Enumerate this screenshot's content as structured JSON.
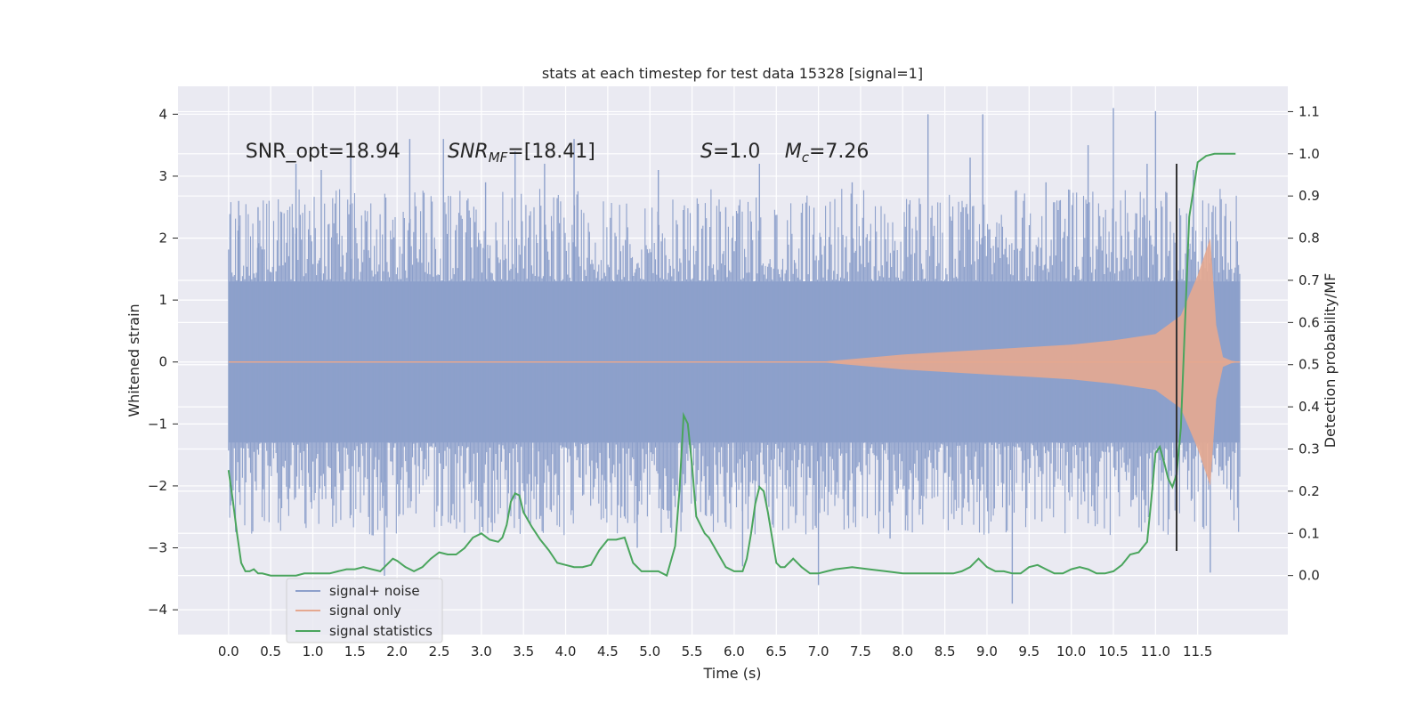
{
  "chart_data": {
    "type": "line",
    "title": "stats at each timestep for test data 15328 [signal=1]",
    "xlabel": "Time (s)",
    "ylabel": "Whitened strain",
    "y2label": "Detection probability/MF",
    "xlim": [
      -0.6,
      12.57
    ],
    "ylim": [
      -4.4,
      4.45
    ],
    "y2lim": [
      -0.14,
      1.16
    ],
    "x_ticks": [
      0.0,
      0.5,
      1.0,
      1.5,
      2.0,
      2.5,
      3.0,
      3.5,
      4.0,
      4.5,
      5.0,
      5.5,
      6.0,
      6.5,
      7.0,
      7.5,
      8.0,
      8.5,
      9.0,
      9.5,
      10.0,
      10.5,
      11.0,
      11.5
    ],
    "y_ticks": [
      -4,
      -3,
      -2,
      -1,
      0,
      1,
      2,
      3,
      4
    ],
    "y2_ticks": [
      0.0,
      0.1,
      0.2,
      0.3,
      0.4,
      0.5,
      0.6,
      0.7,
      0.8,
      0.9,
      1.0,
      1.1
    ],
    "grid": true,
    "legend_position": "lower-left",
    "annotations": [
      {
        "text": "SNR_opt=18.94",
        "x": 0.2,
        "y": 3.3
      },
      {
        "text": "SNR",
        "sub": "MF",
        "suffix": "=[18.41]",
        "italic": true,
        "x": 2.6,
        "y": 3.3
      },
      {
        "text": "S",
        "suffix": "=1.0",
        "italic": true,
        "x": 5.6,
        "y": 3.3
      },
      {
        "text": "M",
        "sub": "c",
        "suffix": "=7.26",
        "italic": true,
        "x": 6.6,
        "y": 3.3
      }
    ],
    "vline": {
      "x": 11.25,
      "y": [
        -3.05,
        3.2
      ],
      "color": "#333333"
    },
    "series": [
      {
        "name": "signal+ noise",
        "color": "#8da0cb",
        "axis": "left",
        "x_range": [
          0.0,
          12.0
        ],
        "noise_core_amplitude": 1.3,
        "peak_spikes": [
          [
            0.12,
            2.6
          ],
          [
            0.35,
            2.5
          ],
          [
            0.8,
            3.2
          ],
          [
            1.1,
            3.1
          ],
          [
            1.45,
            3.5
          ],
          [
            1.85,
            -3.45
          ],
          [
            2.15,
            3.6
          ],
          [
            2.55,
            3.6
          ],
          [
            3.05,
            2.9
          ],
          [
            3.4,
            3.4
          ],
          [
            3.75,
            3.2
          ],
          [
            4.1,
            3.6
          ],
          [
            4.85,
            -3.0
          ],
          [
            5.1,
            3.1
          ],
          [
            5.9,
            2.5
          ],
          [
            6.1,
            -3.3
          ],
          [
            6.3,
            3.2
          ],
          [
            7.0,
            -3.6
          ],
          [
            7.4,
            2.9
          ],
          [
            7.85,
            -2.85
          ],
          [
            8.3,
            4.0
          ],
          [
            8.8,
            3.3
          ],
          [
            8.95,
            4.0
          ],
          [
            9.3,
            -3.9
          ],
          [
            9.7,
            2.9
          ],
          [
            10.2,
            3.5
          ],
          [
            10.5,
            4.1
          ],
          [
            10.9,
            3.2
          ],
          [
            11.0,
            4.05
          ],
          [
            11.45,
            3.1
          ],
          [
            11.65,
            -3.4
          ]
        ]
      },
      {
        "name": "signal only",
        "color": "#e5a890",
        "axis": "left",
        "envelope": {
          "x": [
            0.0,
            5.0,
            7.0,
            8.0,
            9.0,
            9.5,
            10.0,
            10.5,
            11.0,
            11.3,
            11.5,
            11.65,
            11.72,
            11.8,
            11.9,
            12.0
          ],
          "y": [
            0.0,
            0.0,
            0.0,
            0.12,
            0.2,
            0.24,
            0.28,
            0.35,
            0.45,
            0.75,
            1.4,
            2.0,
            0.6,
            0.08,
            0.02,
            0.0
          ]
        }
      },
      {
        "name": "signal statistics",
        "color": "#4aa55d",
        "axis": "right",
        "x": [
          0.0,
          0.05,
          0.1,
          0.15,
          0.2,
          0.25,
          0.3,
          0.35,
          0.4,
          0.5,
          0.6,
          0.7,
          0.8,
          0.9,
          1.0,
          1.1,
          1.2,
          1.3,
          1.4,
          1.5,
          1.6,
          1.7,
          1.8,
          1.9,
          1.95,
          2.0,
          2.1,
          2.2,
          2.3,
          2.4,
          2.5,
          2.6,
          2.7,
          2.8,
          2.9,
          3.0,
          3.1,
          3.2,
          3.25,
          3.3,
          3.35,
          3.4,
          3.45,
          3.5,
          3.6,
          3.7,
          3.8,
          3.9,
          4.0,
          4.1,
          4.2,
          4.3,
          4.4,
          4.5,
          4.6,
          4.7,
          4.8,
          4.9,
          5.0,
          5.1,
          5.2,
          5.3,
          5.35,
          5.4,
          5.45,
          5.5,
          5.55,
          5.6,
          5.65,
          5.7,
          5.8,
          5.9,
          6.0,
          6.1,
          6.15,
          6.2,
          6.25,
          6.3,
          6.35,
          6.4,
          6.45,
          6.5,
          6.55,
          6.6,
          6.7,
          6.8,
          6.9,
          7.0,
          7.1,
          7.2,
          7.4,
          7.6,
          7.8,
          8.0,
          8.2,
          8.4,
          8.6,
          8.7,
          8.8,
          8.9,
          9.0,
          9.1,
          9.2,
          9.3,
          9.4,
          9.5,
          9.6,
          9.7,
          9.8,
          9.9,
          10.0,
          10.1,
          10.2,
          10.3,
          10.4,
          10.5,
          10.6,
          10.7,
          10.8,
          10.9,
          10.95,
          11.0,
          11.05,
          11.1,
          11.15,
          11.2,
          11.25,
          11.3,
          11.35,
          11.4,
          11.5,
          11.6,
          11.7,
          11.8,
          11.9,
          11.95
        ],
        "values": [
          0.25,
          0.18,
          0.1,
          0.03,
          0.01,
          0.01,
          0.015,
          0.005,
          0.005,
          0.0,
          0.0,
          0.0,
          0.0,
          0.005,
          0.005,
          0.005,
          0.005,
          0.01,
          0.015,
          0.015,
          0.02,
          0.015,
          0.01,
          0.03,
          0.04,
          0.035,
          0.02,
          0.01,
          0.02,
          0.04,
          0.055,
          0.05,
          0.05,
          0.065,
          0.09,
          0.1,
          0.085,
          0.08,
          0.09,
          0.12,
          0.175,
          0.195,
          0.19,
          0.15,
          0.115,
          0.085,
          0.06,
          0.03,
          0.025,
          0.02,
          0.02,
          0.025,
          0.06,
          0.085,
          0.085,
          0.09,
          0.03,
          0.01,
          0.01,
          0.01,
          0.0,
          0.07,
          0.2,
          0.38,
          0.36,
          0.26,
          0.14,
          0.12,
          0.1,
          0.09,
          0.055,
          0.02,
          0.01,
          0.01,
          0.04,
          0.1,
          0.17,
          0.21,
          0.2,
          0.15,
          0.09,
          0.03,
          0.02,
          0.02,
          0.04,
          0.02,
          0.005,
          0.005,
          0.01,
          0.015,
          0.02,
          0.015,
          0.01,
          0.005,
          0.005,
          0.005,
          0.005,
          0.01,
          0.02,
          0.04,
          0.02,
          0.01,
          0.01,
          0.005,
          0.005,
          0.02,
          0.025,
          0.015,
          0.005,
          0.005,
          0.015,
          0.02,
          0.015,
          0.005,
          0.005,
          0.01,
          0.025,
          0.05,
          0.055,
          0.08,
          0.18,
          0.29,
          0.305,
          0.27,
          0.23,
          0.21,
          0.24,
          0.35,
          0.6,
          0.85,
          0.98,
          0.995,
          1.0,
          1.0,
          1.0,
          1.0
        ]
      }
    ]
  }
}
